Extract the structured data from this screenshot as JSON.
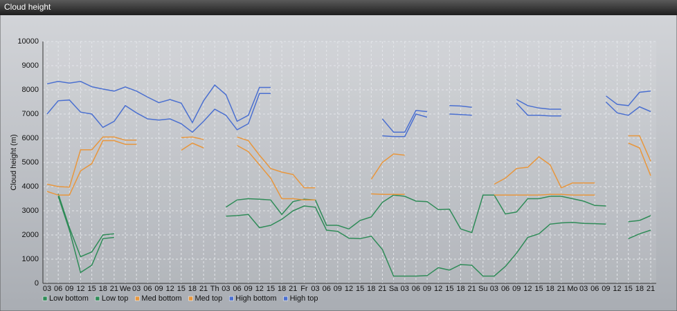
{
  "chart_data": {
    "type": "line",
    "title": "Cloud height",
    "y_label": "Cloud height (m)",
    "categories": [
      "03",
      "06",
      "09",
      "12",
      "15",
      "18",
      "21",
      "We",
      "03",
      "06",
      "09",
      "12",
      "15",
      "18",
      "21",
      "Th",
      "03",
      "06",
      "09",
      "12",
      "15",
      "18",
      "21",
      "Fr",
      "03",
      "06",
      "09",
      "12",
      "15",
      "18",
      "21",
      "Sa",
      "03",
      "06",
      "09",
      "12",
      "15",
      "18",
      "21",
      "Su",
      "03",
      "06",
      "09",
      "12",
      "15",
      "18",
      "21",
      "Mo",
      "03",
      "06",
      "09",
      "12",
      "15",
      "18",
      "21"
    ],
    "ylim": [
      0,
      10000
    ],
    "yticks": [
      0,
      1000,
      2000,
      3000,
      4000,
      5000,
      6000,
      7000,
      8000,
      9000,
      10000
    ],
    "grid": true,
    "series": [
      {
        "name": "Low bottom",
        "color": "#2e8b57",
        "values": [
          null,
          3600,
          2200,
          450,
          750,
          1850,
          1900,
          null,
          null,
          null,
          null,
          null,
          null,
          null,
          null,
          null,
          2780,
          2800,
          2850,
          2300,
          2400,
          2650,
          3000,
          3200,
          3150,
          2200,
          2150,
          1870,
          1850,
          1950,
          1400,
          300,
          300,
          300,
          320,
          650,
          550,
          780,
          750,
          300,
          300,
          700,
          1250,
          1900,
          2050,
          2450,
          2500,
          2520,
          2480,
          2470,
          2450,
          null,
          1850,
          2050,
          2200
        ]
      },
      {
        "name": "Low top",
        "color": "#2e8b57",
        "values": [
          null,
          3700,
          2300,
          1100,
          1300,
          2000,
          2050,
          null,
          null,
          null,
          null,
          null,
          null,
          null,
          null,
          null,
          3150,
          3450,
          3500,
          3480,
          3450,
          2850,
          3380,
          3480,
          3450,
          2400,
          2400,
          2250,
          2600,
          2750,
          3350,
          3650,
          3600,
          3400,
          3380,
          3050,
          3070,
          2250,
          2100,
          3650,
          3650,
          2870,
          2950,
          3500,
          3500,
          3600,
          3600,
          3500,
          3400,
          3220,
          3200,
          null,
          2550,
          2600,
          2800
        ]
      },
      {
        "name": "Med bottom",
        "color": "#e8963c",
        "values": [
          3800,
          3650,
          3650,
          4650,
          4950,
          5900,
          5900,
          5750,
          5750,
          null,
          null,
          null,
          5500,
          5800,
          5600,
          null,
          null,
          5700,
          5450,
          4900,
          4350,
          3500,
          3500,
          3450,
          3450,
          null,
          null,
          null,
          null,
          3700,
          3680,
          3680,
          3680,
          null,
          null,
          null,
          null,
          null,
          null,
          null,
          3650,
          3650,
          3650,
          3650,
          3650,
          3680,
          3680,
          3650,
          3650,
          3650,
          null,
          null,
          5800,
          5600,
          4450
        ]
      },
      {
        "name": "Med top",
        "color": "#e8963c",
        "values": [
          4100,
          4000,
          3980,
          5520,
          5520,
          6050,
          6050,
          5920,
          5920,
          null,
          null,
          null,
          6030,
          6050,
          5950,
          null,
          null,
          6050,
          5900,
          5300,
          4750,
          4600,
          4500,
          3950,
          3950,
          null,
          null,
          null,
          null,
          4300,
          5000,
          5350,
          5300,
          null,
          null,
          null,
          null,
          null,
          null,
          null,
          4100,
          4350,
          4750,
          4800,
          5230,
          4900,
          3950,
          4150,
          4150,
          4150,
          null,
          null,
          6100,
          6100,
          5050
        ]
      },
      {
        "name": "High bottom",
        "color": "#4a6fd0",
        "values": [
          7000,
          7550,
          7580,
          7080,
          7000,
          6450,
          6700,
          7350,
          7050,
          6800,
          6750,
          6800,
          6600,
          6250,
          6700,
          7200,
          6950,
          6350,
          6600,
          7850,
          7850,
          null,
          null,
          null,
          null,
          null,
          null,
          null,
          null,
          null,
          6100,
          6070,
          6070,
          7000,
          6870,
          null,
          7000,
          6980,
          6950,
          null,
          null,
          null,
          7450,
          6950,
          6950,
          6920,
          6920,
          null,
          null,
          null,
          7500,
          7050,
          6950,
          7300,
          7100
        ]
      },
      {
        "name": "High top",
        "color": "#4a6fd0",
        "values": [
          8250,
          8350,
          8280,
          8350,
          8130,
          8030,
          7950,
          8120,
          7950,
          7700,
          7470,
          7600,
          7450,
          6650,
          7550,
          8200,
          7800,
          6700,
          6950,
          8100,
          8100,
          null,
          null,
          null,
          null,
          null,
          null,
          null,
          null,
          null,
          6800,
          6250,
          6250,
          7150,
          7100,
          null,
          7350,
          7330,
          7280,
          null,
          null,
          null,
          7600,
          7350,
          7250,
          7200,
          7200,
          null,
          null,
          null,
          7750,
          7400,
          7350,
          7900,
          7950
        ]
      }
    ]
  }
}
